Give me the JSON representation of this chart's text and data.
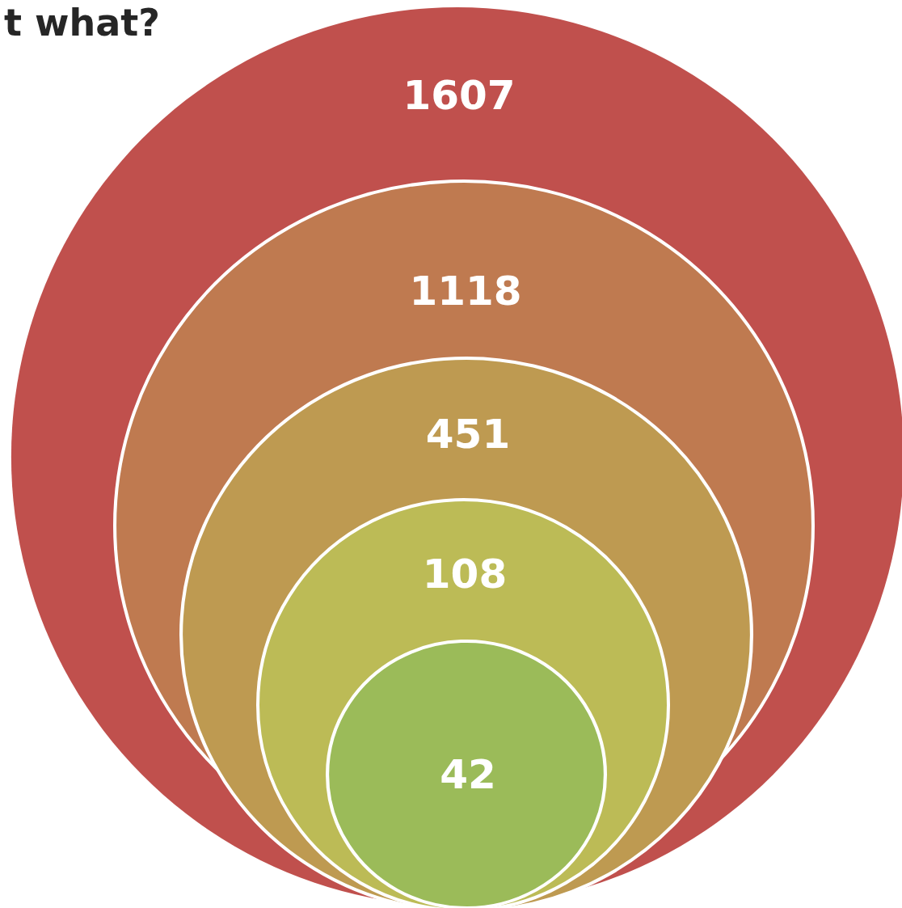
{
  "chart_data": {
    "type": "other",
    "title": "t what?",
    "values": [
      1607,
      1118,
      451,
      108,
      42
    ],
    "colors": [
      "#c0504d",
      "#bf7a50",
      "#be9a51",
      "#bcbb56",
      "#9bbb59"
    ],
    "data_labels": true
  }
}
